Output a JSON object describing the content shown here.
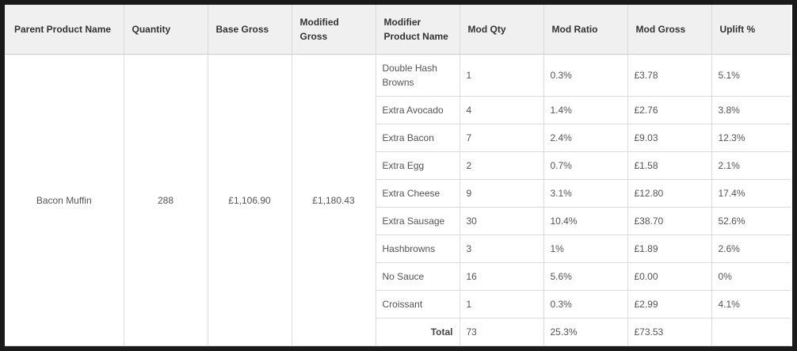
{
  "table": {
    "headers": [
      "Parent Product Name",
      "Quantity",
      "Base Gross",
      "Modified Gross",
      "Modifier Product Name",
      "Mod Qty",
      "Mod Ratio",
      "Mod Gross",
      "Uplift %"
    ],
    "parent": {
      "name": "Bacon Muffin",
      "quantity": "288",
      "base_gross": "£1,106.90",
      "modified_gross": "£1,180.43"
    },
    "rows": [
      {
        "modifier": "Double Hash Browns",
        "mod_qty": "1",
        "mod_ratio": "0.3%",
        "mod_gross": "£3.78",
        "uplift": "5.1%"
      },
      {
        "modifier": "Extra Avocado",
        "mod_qty": "4",
        "mod_ratio": "1.4%",
        "mod_gross": "£2.76",
        "uplift": "3.8%"
      },
      {
        "modifier": "Extra Bacon",
        "mod_qty": "7",
        "mod_ratio": "2.4%",
        "mod_gross": "£9.03",
        "uplift": "12.3%"
      },
      {
        "modifier": "Extra Egg",
        "mod_qty": "2",
        "mod_ratio": "0.7%",
        "mod_gross": "£1.58",
        "uplift": "2.1%"
      },
      {
        "modifier": "Extra Cheese",
        "mod_qty": "9",
        "mod_ratio": "3.1%",
        "mod_gross": "£12.80",
        "uplift": "17.4%"
      },
      {
        "modifier": "Extra Sausage",
        "mod_qty": "30",
        "mod_ratio": "10.4%",
        "mod_gross": "£38.70",
        "uplift": "52.6%"
      },
      {
        "modifier": "Hashbrowns",
        "mod_qty": "3",
        "mod_ratio": "1%",
        "mod_gross": "£1.89",
        "uplift": "2.6%"
      },
      {
        "modifier": "No Sauce",
        "mod_qty": "16",
        "mod_ratio": "5.6%",
        "mod_gross": "£0.00",
        "uplift": "0%"
      },
      {
        "modifier": "Croissant",
        "mod_qty": "1",
        "mod_ratio": "0.3%",
        "mod_gross": "£2.99",
        "uplift": "4.1%"
      }
    ],
    "total": {
      "label": "Total",
      "mod_qty": "73",
      "mod_ratio": "25.3%",
      "mod_gross": "£73.53",
      "uplift": ""
    }
  }
}
